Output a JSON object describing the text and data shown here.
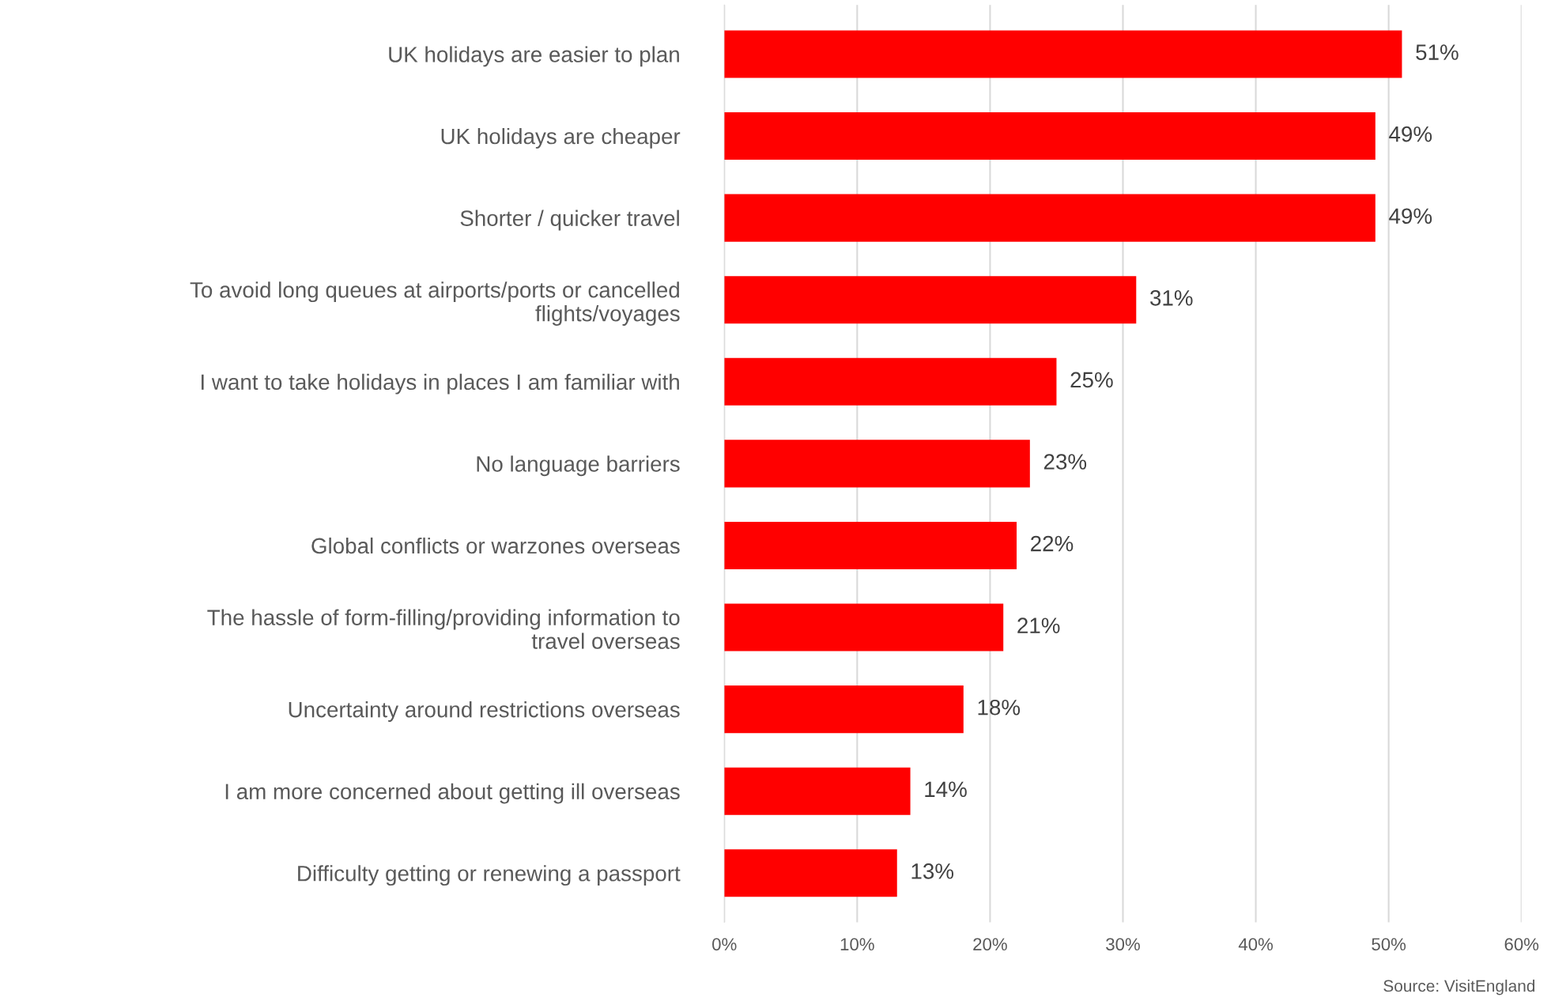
{
  "chart_data": {
    "type": "bar",
    "orientation": "horizontal",
    "categories": [
      "UK holidays are easier to plan",
      "UK holidays are cheaper",
      "Shorter / quicker travel",
      "To avoid long queues at airports/ports or cancelled\nflights/voyages",
      "I want to take holidays in places I am familiar with",
      "No language barriers",
      "Global conflicts or warzones overseas",
      "The hassle of form-filling/providing information to\ntravel overseas",
      "Uncertainty around restrictions overseas",
      "I am more concerned about getting ill overseas",
      "Difficulty getting or renewing a passport"
    ],
    "values": [
      51,
      49,
      49,
      31,
      25,
      23,
      22,
      21,
      18,
      14,
      13
    ],
    "value_labels": [
      "51%",
      "49%",
      "49%",
      "31%",
      "25%",
      "23%",
      "22%",
      "21%",
      "18%",
      "14%",
      "13%"
    ],
    "color": "#ff0000",
    "xlim": [
      0,
      60
    ],
    "xticks": [
      {
        "value": 0,
        "label": "0%"
      },
      {
        "value": 10,
        "label": "10%"
      },
      {
        "value": 20,
        "label": "20%"
      },
      {
        "value": 30,
        "label": "30%"
      },
      {
        "value": 40,
        "label": "40%"
      },
      {
        "value": 50,
        "label": "50%"
      },
      {
        "value": 60,
        "label": "60%"
      }
    ],
    "grid": "x",
    "annotations": [
      "Source: VisitEngland"
    ]
  }
}
